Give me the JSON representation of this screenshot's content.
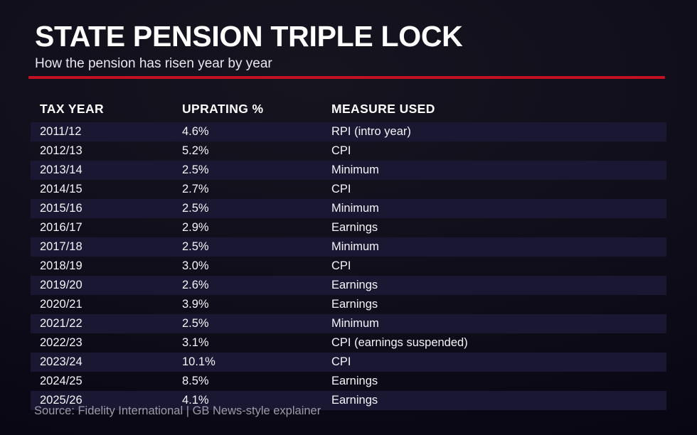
{
  "header": {
    "title": "STATE PENSION TRIPLE LOCK",
    "subtitle": "How the pension has risen year by year"
  },
  "table": {
    "columns": [
      "TAX YEAR",
      "UPRATING %",
      "MEASURE USED"
    ],
    "rows": [
      [
        "2011/12",
        "4.6%",
        "RPI (intro year)"
      ],
      [
        "2012/13",
        "5.2%",
        "CPI"
      ],
      [
        "2013/14",
        "2.5%",
        "Minimum"
      ],
      [
        "2014/15",
        "2.7%",
        "CPI"
      ],
      [
        "2015/16",
        "2.5%",
        "Minimum"
      ],
      [
        "2016/17",
        "2.9%",
        "Earnings"
      ],
      [
        "2017/18",
        "2.5%",
        "Minimum"
      ],
      [
        "2018/19",
        "3.0%",
        "CPI"
      ],
      [
        "2019/20",
        "2.6%",
        "Earnings"
      ],
      [
        "2020/21",
        "3.9%",
        "Earnings"
      ],
      [
        "2021/22",
        "2.5%",
        "Minimum"
      ],
      [
        "2022/23",
        "3.1%",
        "CPI (earnings suspended)"
      ],
      [
        "2023/24",
        "10.1%",
        "CPI"
      ],
      [
        "2024/25",
        "8.5%",
        "Earnings"
      ],
      [
        "2025/26",
        "4.1%",
        "Earnings"
      ]
    ]
  },
  "footer": {
    "source": "Source: Fidelity International | GB News-style explainer"
  },
  "colors": {
    "accent_red": "#c31022",
    "row_band": "#1a1732",
    "background": "#0c0a15",
    "text_primary": "#ffffff",
    "text_muted": "#9d9bab"
  },
  "chart_data": {
    "type": "table",
    "title": "STATE PENSION TRIPLE LOCK",
    "subtitle": "How the pension has risen year by year",
    "columns": [
      "TAX YEAR",
      "UPRATING %",
      "MEASURE USED"
    ],
    "categories": [
      "2011/12",
      "2012/13",
      "2013/14",
      "2014/15",
      "2015/16",
      "2016/17",
      "2017/18",
      "2018/19",
      "2019/20",
      "2020/21",
      "2021/22",
      "2022/23",
      "2023/24",
      "2024/25",
      "2025/26"
    ],
    "values": [
      4.6,
      5.2,
      2.5,
      2.7,
      2.5,
      2.9,
      2.5,
      3.0,
      2.6,
      3.9,
      2.5,
      3.1,
      10.1,
      8.5,
      4.1
    ],
    "measures": [
      "RPI (intro year)",
      "CPI",
      "Minimum",
      "CPI",
      "Minimum",
      "Earnings",
      "Minimum",
      "CPI",
      "Earnings",
      "Earnings",
      "Minimum",
      "CPI (earnings suspended)",
      "CPI",
      "Earnings",
      "Earnings"
    ],
    "value_unit": "%"
  }
}
